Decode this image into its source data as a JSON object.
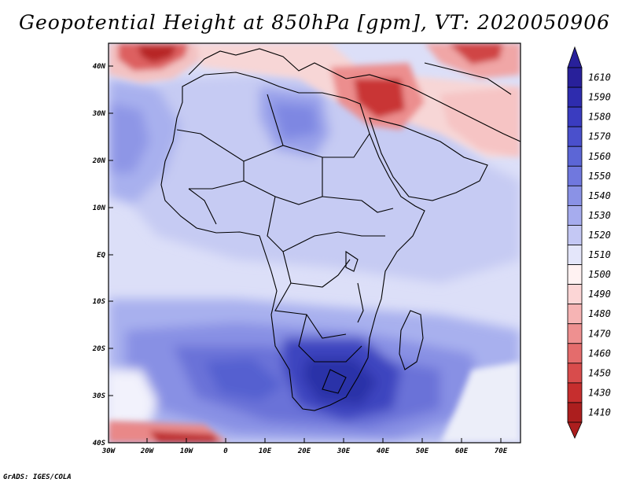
{
  "map": {
    "title": "Geopotential Height at 850hPa [gpm], VT: 2020050906",
    "variable": "Geopotential Height",
    "level": "850hPa",
    "units": "gpm",
    "valid_time": "2020050906",
    "lat_labels": [
      "40N",
      "30N",
      "20N",
      "10N",
      "EQ",
      "10S",
      "20S",
      "30S",
      "40S"
    ],
    "lon_labels": [
      "30W",
      "20W",
      "10W",
      "0",
      "10E",
      "20E",
      "30E",
      "40E",
      "50E",
      "60E",
      "70E"
    ],
    "colorbar": {
      "levels": [
        "1610",
        "1590",
        "1580",
        "1570",
        "1560",
        "1550",
        "1540",
        "1530",
        "1520",
        "1510",
        "1500",
        "1490",
        "1480",
        "1470",
        "1460",
        "1450",
        "1430",
        "1410"
      ],
      "colors": [
        "#28209a",
        "#2e2cae",
        "#3a3cc0",
        "#4a50cc",
        "#5c66d6",
        "#7078de",
        "#8a92e6",
        "#a6acee",
        "#c4c8f4",
        "#e4e6fa",
        "#fff2f2",
        "#fcd6d6",
        "#f6b4b4",
        "#ee9090",
        "#e46c6c",
        "#d84c4c",
        "#c62e2e",
        "#ac1e1e"
      ]
    },
    "credit": "GrADS: IGES/COLA"
  }
}
